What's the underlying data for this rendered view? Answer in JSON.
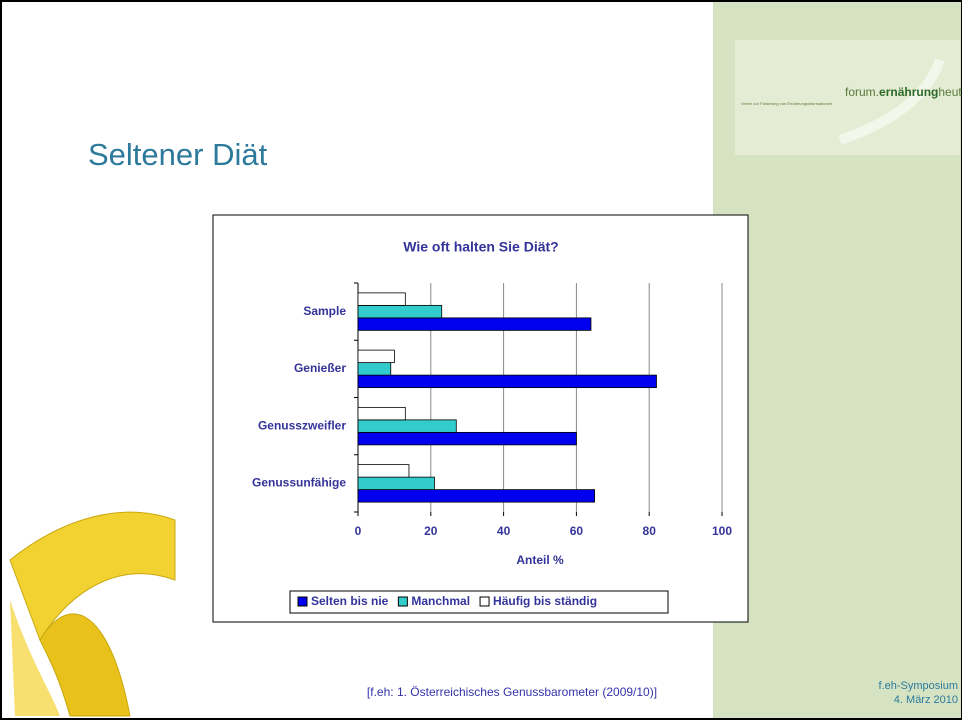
{
  "slide": {
    "title": "Seltener Diät",
    "source": "[f.eh: 1. Österreichisches Genussbarometer (2009/10)]",
    "footer": [
      "f.eh-Symposium",
      "4. März 2010"
    ],
    "logo": {
      "prefix": "forum.",
      "bold": "ernährung",
      "suffix": "heute",
      "tagline": "Verein zur Förderung von Ernährungsinformationen"
    }
  },
  "chart_data": {
    "type": "bar",
    "orientation": "horizontal",
    "title": "Wie oft halten Sie Diät?",
    "x_label": "Anteil %",
    "categories": [
      "Sample",
      "Genießer",
      "Genusszweifler",
      "Genussunfähige"
    ],
    "series": [
      {
        "name": "Selten bis nie",
        "color": "#0000ee",
        "values": [
          64,
          82,
          60,
          65
        ]
      },
      {
        "name": "Manchmal",
        "color": "#33cccc",
        "values": [
          23,
          9,
          27,
          21
        ]
      },
      {
        "name": "Häufig bis ständig",
        "color": "#ffffff",
        "values": [
          13,
          10,
          13,
          14
        ]
      }
    ],
    "xlim": [
      0,
      100
    ],
    "xticks": [
      0,
      20,
      40,
      60,
      80,
      100
    ],
    "grid": true,
    "legend": "bottom"
  }
}
